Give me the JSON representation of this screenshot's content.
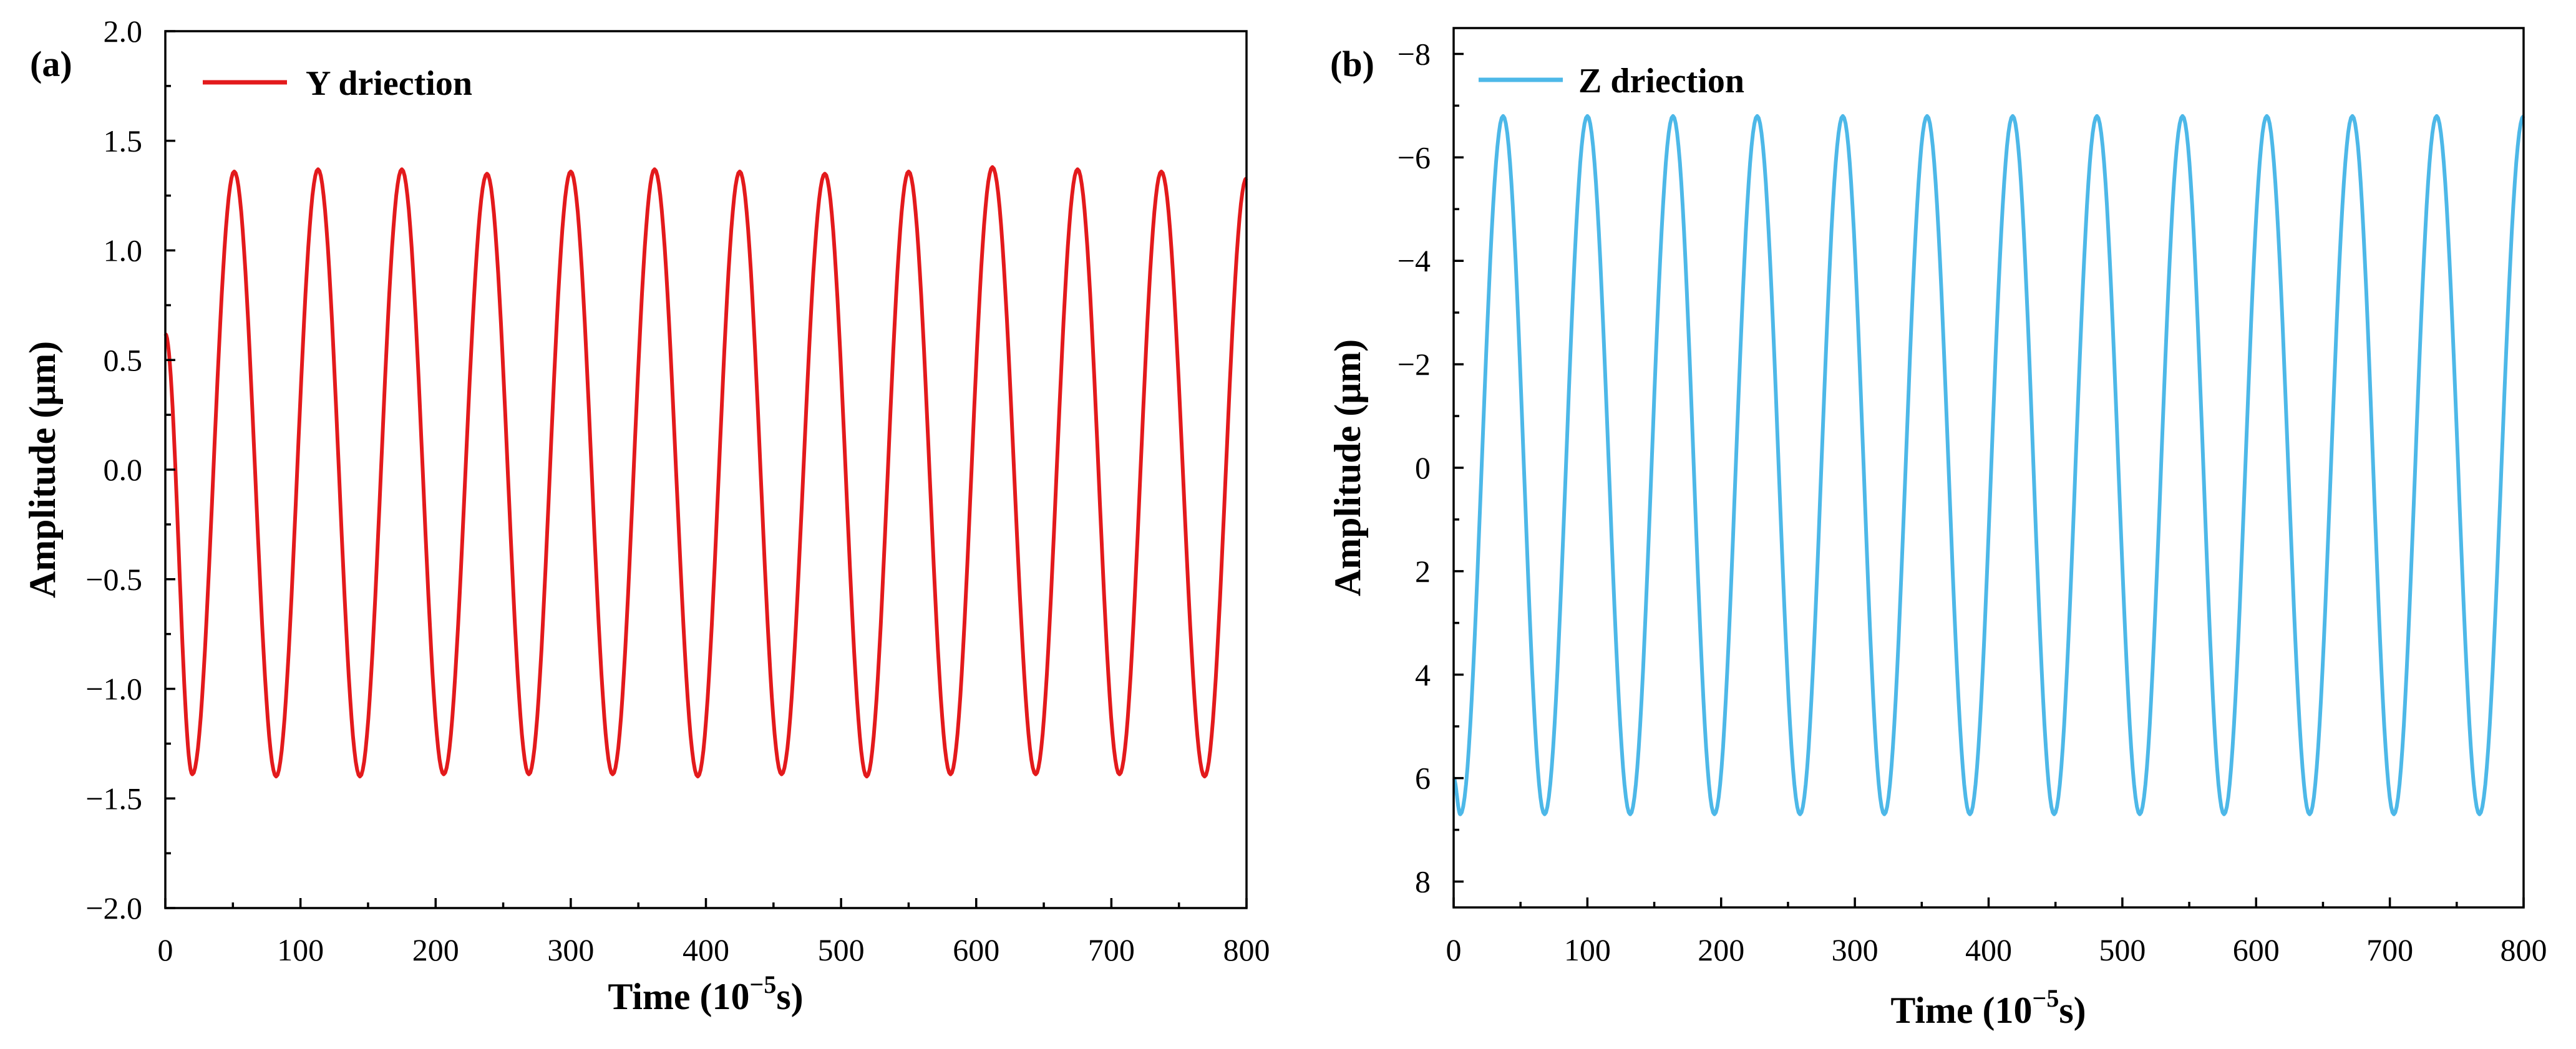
{
  "chart_data": [
    {
      "type": "line",
      "panel": "(a)",
      "xlabel": "Time (10",
      "xlabel_sup": "−5",
      "xlabel_unit": "s)",
      "ylabel": "Amplitude (μm)",
      "xlim": [
        0,
        800
      ],
      "ylim": [
        -2.0,
        2.0
      ],
      "y_inverted": false,
      "xticks": [
        0,
        100,
        200,
        300,
        400,
        500,
        600,
        700,
        800
      ],
      "xtick_labels": [
        "0",
        "100",
        "200",
        "300",
        "400",
        "500",
        "600",
        "700",
        "800"
      ],
      "yticks": [
        2.0,
        1.5,
        1.0,
        0.5,
        0.0,
        -0.5,
        -1.0,
        -1.5,
        -2.0
      ],
      "ytick_labels": [
        "2.0",
        "1.5",
        "1.0",
        "0.5",
        "0.0",
        "−0.5",
        "−1.0",
        "−1.5",
        "−2.0"
      ],
      "legend_position": "top-left",
      "series": [
        {
          "name": "Y driection",
          "color": "#e31a1c",
          "start_value": 0.62,
          "start_time": 0,
          "extrema": [
            [
              20,
              -1.39
            ],
            [
              51,
              1.36
            ],
            [
              82,
              -1.4
            ],
            [
              113,
              1.37
            ],
            [
              144,
              -1.4
            ],
            [
              175,
              1.37
            ],
            [
              206,
              -1.39
            ],
            [
              238,
              1.35
            ],
            [
              269,
              -1.39
            ],
            [
              300,
              1.36
            ],
            [
              331,
              -1.39
            ],
            [
              362,
              1.37
            ],
            [
              394,
              -1.4
            ],
            [
              425,
              1.36
            ],
            [
              456,
              -1.39
            ],
            [
              488,
              1.35
            ],
            [
              519,
              -1.4
            ],
            [
              550,
              1.36
            ],
            [
              581,
              -1.39
            ],
            [
              612,
              1.38
            ],
            [
              644,
              -1.39
            ],
            [
              675,
              1.37
            ],
            [
              706,
              -1.39
            ],
            [
              737,
              1.36
            ],
            [
              769,
              -1.4
            ]
          ],
          "end_time": 800,
          "end_value": 1.33
        }
      ]
    },
    {
      "type": "line",
      "panel": "(b)",
      "xlabel": "Time (10",
      "xlabel_sup": "−5",
      "xlabel_unit": "s)",
      "ylabel": "Amplitude (μm)",
      "xlim": [
        0,
        800
      ],
      "ylim": [
        -8.5,
        8.5
      ],
      "y_inverted": true,
      "xticks": [
        0,
        100,
        200,
        300,
        400,
        500,
        600,
        700,
        800
      ],
      "xtick_labels": [
        "0",
        "100",
        "200",
        "300",
        "400",
        "500",
        "600",
        "700",
        "800"
      ],
      "yticks": [
        -8,
        -6,
        -4,
        -2,
        0,
        2,
        4,
        6,
        8
      ],
      "ytick_labels": [
        "−8",
        "−6",
        "−4",
        "−2",
        "0",
        "2",
        "4",
        "6",
        "8"
      ],
      "legend_position": "top-left",
      "series": [
        {
          "name": "Z driection",
          "color": "#4db8e8",
          "start_value": 6.0,
          "start_time": 0,
          "extrema": [
            [
              5,
              6.7
            ],
            [
              37,
              -6.8
            ],
            [
              68,
              6.7
            ],
            [
              100,
              -6.8
            ],
            [
              132,
              6.7
            ],
            [
              164,
              -6.8
            ],
            [
              195,
              6.7
            ],
            [
              227,
              -6.8
            ],
            [
              259,
              6.7
            ],
            [
              291,
              -6.8
            ],
            [
              322,
              6.7
            ],
            [
              354,
              -6.8
            ],
            [
              386,
              6.7
            ],
            [
              418,
              -6.8
            ],
            [
              449,
              6.7
            ],
            [
              481,
              -6.8
            ],
            [
              513,
              6.7
            ],
            [
              545,
              -6.8
            ],
            [
              576,
              6.7
            ],
            [
              608,
              -6.8
            ],
            [
              640,
              6.7
            ],
            [
              672,
              -6.8
            ],
            [
              703,
              6.7
            ],
            [
              735,
              -6.8
            ],
            [
              767,
              6.7
            ]
          ],
          "end_time": 800,
          "end_value": -6.8
        }
      ]
    }
  ]
}
